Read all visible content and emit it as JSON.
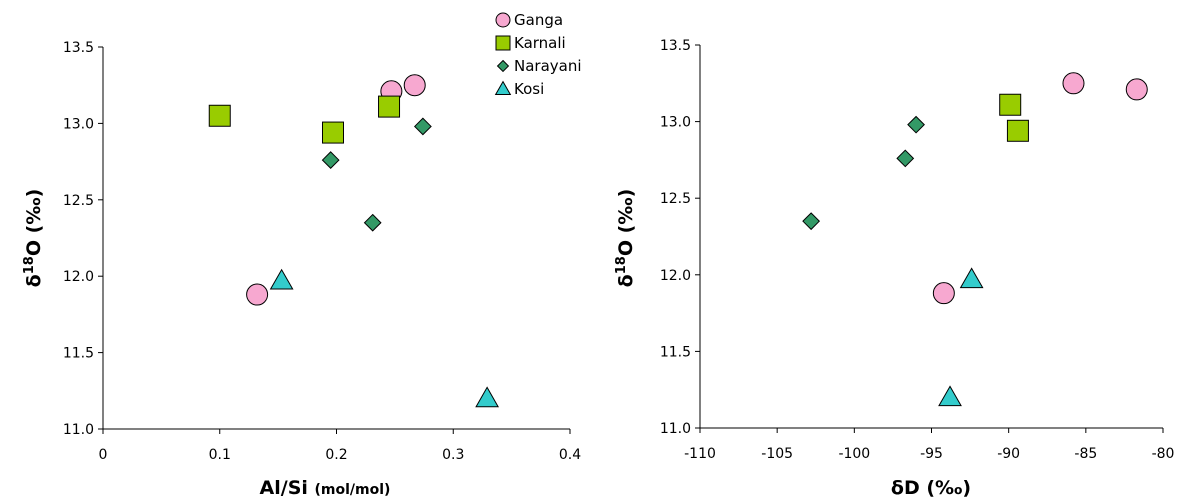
{
  "colors": {
    "Ganga": "#f7a8d0",
    "Karnali": "#99cc00",
    "Narayani": "#339966",
    "Kosi": "#33cccc"
  },
  "legend": [
    {
      "name": "Ganga",
      "marker": "circle"
    },
    {
      "name": "Karnali",
      "marker": "square"
    },
    {
      "name": "Narayani",
      "marker": "diamond"
    },
    {
      "name": "Kosi",
      "marker": "triangle"
    }
  ],
  "chart_data": [
    {
      "type": "scatter",
      "xlabel": "Al/Si",
      "xlabel_unit": "(mol/mol)",
      "ylabel_delta": "δ",
      "ylabel_sup": "18",
      "ylabel_rest": "O (‰)",
      "xlim": [
        0,
        0.4
      ],
      "ylim": [
        11.0,
        13.5
      ],
      "xticks": [
        0,
        0.1,
        0.2,
        0.3,
        0.4
      ],
      "xtick_labels": [
        "0",
        "0.1",
        "0.2",
        "0.3",
        "0.4"
      ],
      "yticks": [
        11.0,
        11.5,
        12.0,
        12.5,
        13.0,
        13.5
      ],
      "ytick_labels": [
        "11.0",
        "11.5",
        "12.0",
        "12.5",
        "13.0",
        "13.5"
      ],
      "series": [
        {
          "name": "Ganga",
          "points": [
            [
              0.132,
              11.88
            ],
            [
              0.247,
              13.21
            ],
            [
              0.267,
              13.25
            ]
          ]
        },
        {
          "name": "Karnali",
          "points": [
            [
              0.1,
              13.05
            ],
            [
              0.197,
              12.94
            ],
            [
              0.245,
              13.11
            ]
          ]
        },
        {
          "name": "Narayani",
          "points": [
            [
              0.195,
              12.76
            ],
            [
              0.231,
              12.35
            ],
            [
              0.274,
              12.98
            ]
          ]
        },
        {
          "name": "Kosi",
          "points": [
            [
              0.153,
              11.97
            ],
            [
              0.329,
              11.2
            ]
          ]
        }
      ]
    },
    {
      "type": "scatter",
      "xlabel": "δD (‰)",
      "ylabel_delta": "δ",
      "ylabel_sup": "18",
      "ylabel_rest": "O (‰)",
      "xlim": [
        -110,
        -80
      ],
      "ylim": [
        11.0,
        13.5
      ],
      "xticks": [
        -110,
        -105,
        -100,
        -95,
        -90,
        -85,
        -80
      ],
      "xtick_labels": [
        "-110",
        "-105",
        "-100",
        "-95",
        "-90",
        "-85",
        "-80"
      ],
      "yticks": [
        11.0,
        11.5,
        12.0,
        12.5,
        13.0,
        13.5
      ],
      "ytick_labels": [
        "11.0",
        "11.5",
        "12.0",
        "12.5",
        "13.0",
        "13.5"
      ],
      "series": [
        {
          "name": "Ganga",
          "points": [
            [
              -94.2,
              11.88
            ],
            [
              -85.8,
              13.25
            ],
            [
              -81.7,
              13.21
            ]
          ]
        },
        {
          "name": "Karnali",
          "points": [
            [
              -89.9,
              13.11
            ],
            [
              -89.4,
              12.94
            ]
          ]
        },
        {
          "name": "Narayani",
          "points": [
            [
              -102.8,
              12.35
            ],
            [
              -96.7,
              12.76
            ],
            [
              -96.0,
              12.98
            ]
          ]
        },
        {
          "name": "Kosi",
          "points": [
            [
              -92.4,
              11.97
            ],
            [
              -93.8,
              11.2
            ]
          ]
        }
      ]
    }
  ]
}
